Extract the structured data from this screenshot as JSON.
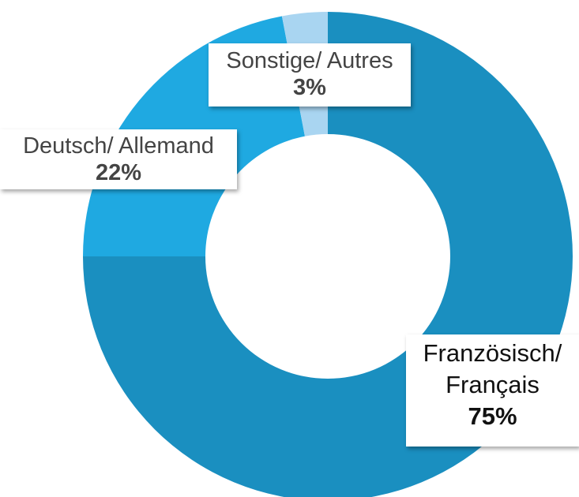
{
  "chart_data": {
    "type": "donut",
    "categories": [
      "Französisch/ Français",
      "Deutsch/ Allemand",
      "Sonstige/ Autres"
    ],
    "values": [
      75,
      22,
      3
    ],
    "value_labels": [
      "75%",
      "22%",
      "3%"
    ],
    "colors": [
      "#1a8fc0",
      "#1fa9e1",
      "#a9d5f1"
    ]
  }
}
